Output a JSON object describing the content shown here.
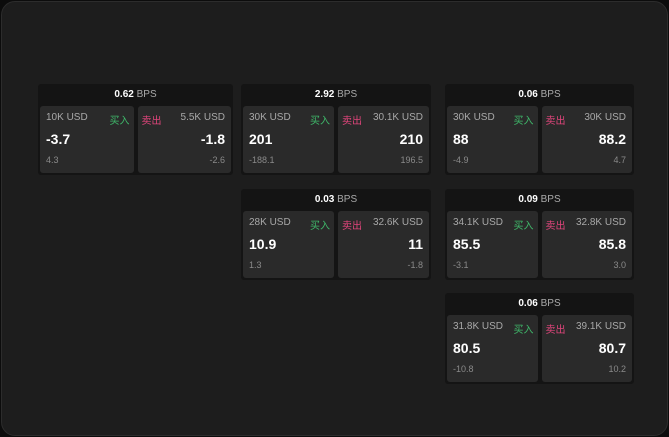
{
  "buy_label": "买入",
  "sell_label": "卖出",
  "unit": "BPS",
  "colors": {
    "buy": "#3fb86a",
    "sell": "#e0457b"
  },
  "cards": [
    {
      "spread": "0.62",
      "buy": {
        "size": "10K USD",
        "price": "-3.7",
        "change": "4.3"
      },
      "sell": {
        "size": "5.5K USD",
        "price": "-1.8",
        "change": "-2.6"
      }
    },
    {
      "spread": "2.92",
      "buy": {
        "size": "30K USD",
        "price": "201",
        "change": "-188.1"
      },
      "sell": {
        "size": "30.1K USD",
        "price": "210",
        "change": "196.5"
      }
    },
    {
      "spread": "0.06",
      "buy": {
        "size": "30K USD",
        "price": "88",
        "change": "-4.9"
      },
      "sell": {
        "size": "30K USD",
        "price": "88.2",
        "change": "4.7"
      }
    },
    {
      "spread": "0.03",
      "buy": {
        "size": "28K USD",
        "price": "10.9",
        "change": "1.3"
      },
      "sell": {
        "size": "32.6K USD",
        "price": "11",
        "change": "-1.8"
      }
    },
    {
      "spread": "0.09",
      "buy": {
        "size": "34.1K USD",
        "price": "85.5",
        "change": "-3.1"
      },
      "sell": {
        "size": "32.8K USD",
        "price": "85.8",
        "change": "3.0"
      }
    },
    {
      "spread": "0.06",
      "buy": {
        "size": "31.8K USD",
        "price": "80.5",
        "change": "-10.8"
      },
      "sell": {
        "size": "39.1K USD",
        "price": "80.7",
        "change": "10.2"
      }
    }
  ]
}
